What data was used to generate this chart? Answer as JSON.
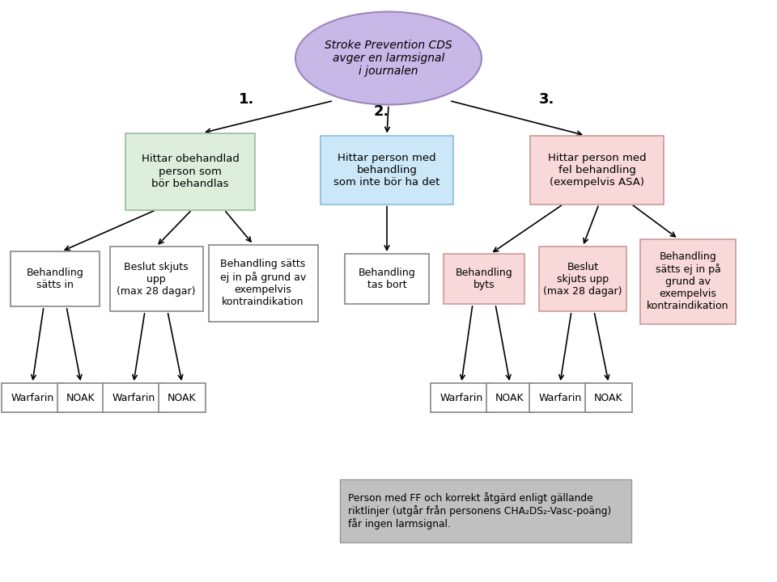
{
  "title_text": "Stroke Prevention CDS\navger en larmsignal\ni journalen",
  "title_color": "#c8b8e8",
  "title_border": "#9b87be",
  "box1_text": "Hittar obehandlad\nperson som\nbör behandlas",
  "box1_color": "#ddeedd",
  "box1_border": "#99bb99",
  "box2_text": "Hittar person med\nbehandling\nsom inte bör ha det",
  "box2_color": "#cce8f8",
  "box2_border": "#88bbdd",
  "box3_text": "Hittar person med\nfel behandling\n(exempelvis ASA)",
  "box3_color": "#f8d8d8",
  "box3_border": "#cc9999",
  "L1a_text": "Behandling\nsätts in",
  "L1a_color": "#ffffff",
  "L1a_border": "#888888",
  "L1b_text": "Beslut skjuts\nupp\n(max 28 dagar)",
  "L1b_color": "#ffffff",
  "L1b_border": "#888888",
  "L1c_text": "Behandling sätts\nej in på grund av\nexempelvis\nkontraindikation",
  "L1c_color": "#ffffff",
  "L1c_border": "#888888",
  "L2a_text": "Behandling\ntas bort",
  "L2a_color": "#ffffff",
  "L2a_border": "#888888",
  "L3a_text": "Behandling\nbyts",
  "L3a_color": "#f8d8d8",
  "L3a_border": "#cc9999",
  "L3b_text": "Beslut\nskjuts upp\n(max 28 dagar)",
  "L3b_color": "#f8d8d8",
  "L3b_border": "#cc9999",
  "L3c_text": "Behandling\nsätts ej in på\ngrund av\nexempelvis\nkontraindikation",
  "L3c_color": "#f8d8d8",
  "L3c_border": "#cc9999",
  "note_text": "Person med FF och korrekt åtgärd enligt gällande\nriktlinjer (utgår från personens CHA₂DS₂-Vasc-poäng)\nfår ingen larmsignal.",
  "note_color": "#c0c0c0",
  "note_border": "#999999",
  "label1": "1.",
  "label2": "2.",
  "label3": "3.",
  "background": "#ffffff"
}
